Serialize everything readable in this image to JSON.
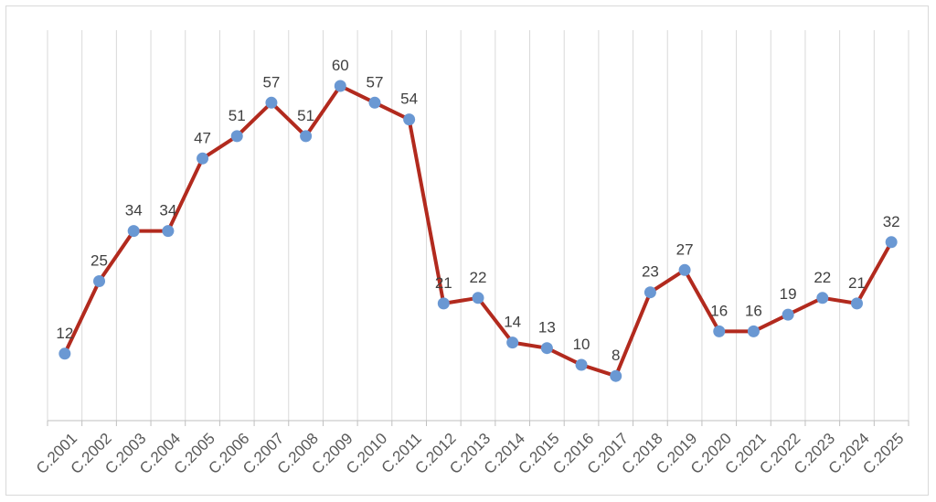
{
  "chart_data": {
    "type": "line",
    "title": "",
    "xlabel": "",
    "ylabel": "",
    "categories": [
      "C.2001",
      "C.2002",
      "C.2003",
      "C.2004",
      "C.2005",
      "C.2006",
      "C.2007",
      "C.2008",
      "C.2009",
      "C.2010",
      "C.2011",
      "C.2012",
      "C.2013",
      "C.2014",
      "C.2015",
      "C.2016",
      "C.2017",
      "C.2018",
      "C.2019",
      "C.2020",
      "C.2021",
      "C.2022",
      "C.2023",
      "C.2024",
      "C.2025"
    ],
    "series": [
      {
        "values": [
          12,
          25,
          34,
          34,
          47,
          51,
          57,
          51,
          60,
          57,
          54,
          21,
          22,
          14,
          13,
          10,
          8,
          23,
          27,
          16,
          16,
          19,
          22,
          21,
          32
        ]
      }
    ],
    "ylim": [
      0,
      70
    ],
    "grid": "vertical",
    "legend": "none",
    "data_labels": true,
    "colors": {
      "line": "#b22a1e",
      "marker": "#6a98d3",
      "grid": "#d9d9d9",
      "axis": "#bfbfbf"
    }
  }
}
